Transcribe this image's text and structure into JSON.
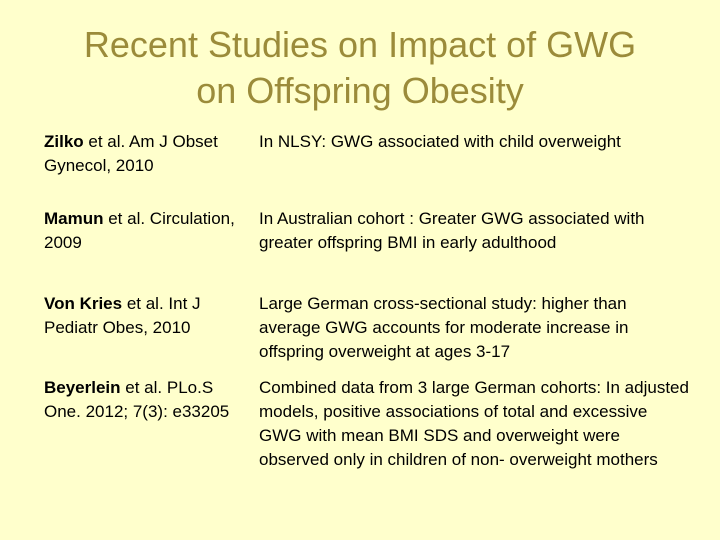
{
  "slide": {
    "title_line1": "Recent Studies on  Impact of GWG",
    "title_line2": "on Offspring Obesity"
  },
  "studies": [
    {
      "author": "Zilko",
      "reference": " et al. Am J Obset Gynecol, 2010",
      "finding": "In NLSY: GWG associated with child overweight"
    },
    {
      "author": "Mamun",
      "reference": " et al. Circulation, 2009",
      "finding": "In Australian cohort : Greater GWG associated with greater offspring BMI in early adulthood"
    },
    {
      "author": "Von Kries",
      "reference": " et al. Int J Pediatr Obes, 2010",
      "finding": "Large German cross-sectional study: higher than average GWG accounts for moderate increase in offspring overweight at ages 3-17"
    },
    {
      "author": "Beyerlein",
      "reference": " et al. PLo.S One. 2012; 7(3): e33205",
      "finding": "Combined data from 3 large German cohorts: In adjusted models, positive associations of total and excessive GWG with mean BMI SDS and overweight were observed only in children of non- overweight mothers"
    }
  ]
}
